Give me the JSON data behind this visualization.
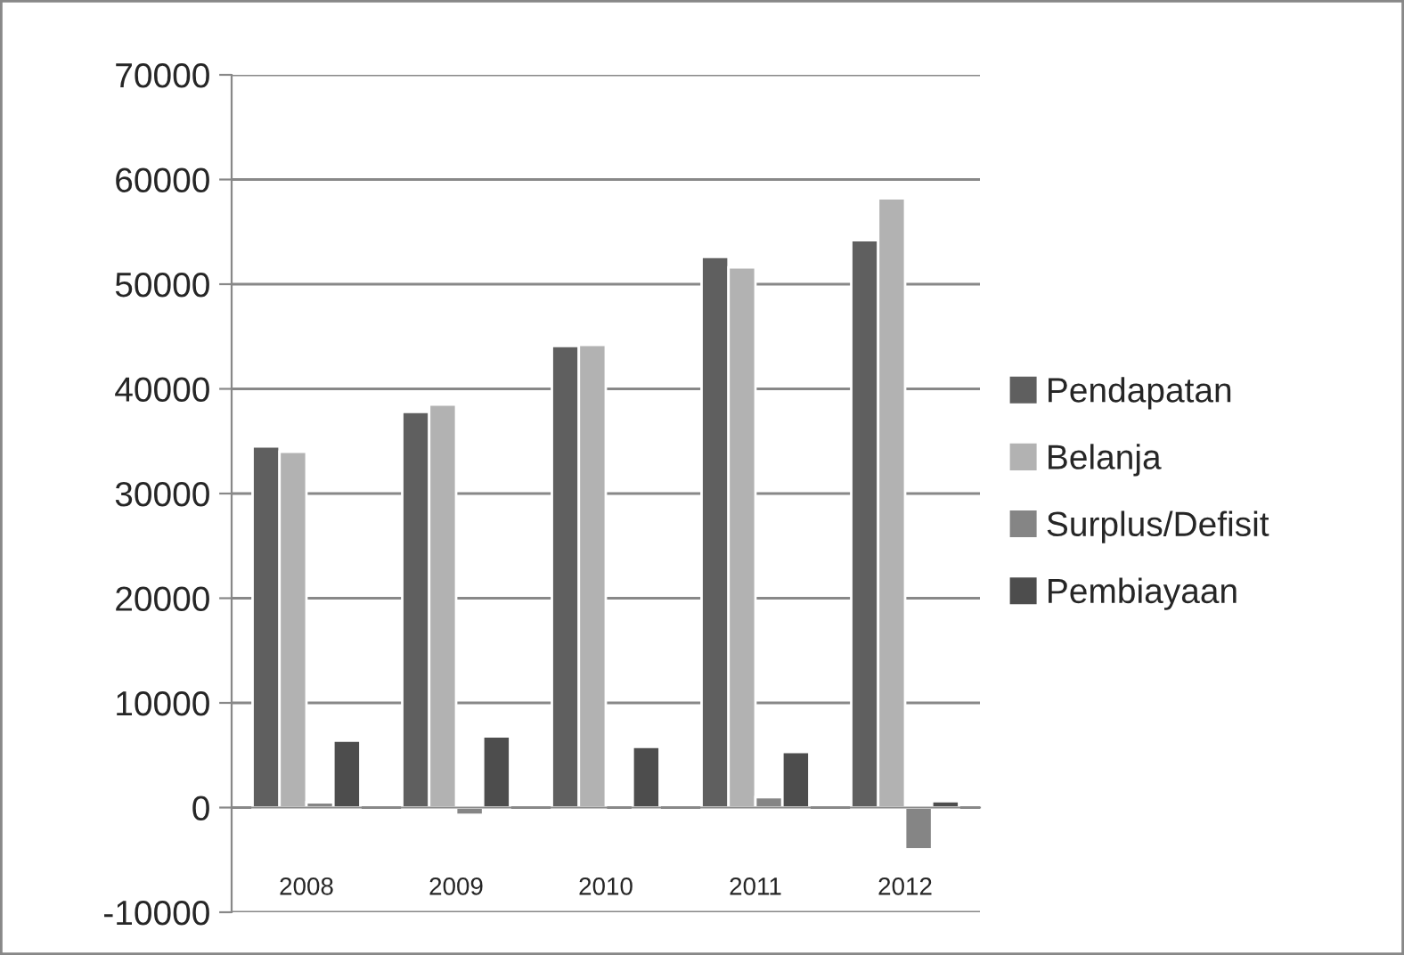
{
  "chart_data": {
    "type": "bar",
    "categories": [
      "2008",
      "2009",
      "2010",
      "2011",
      "2012"
    ],
    "series": [
      {
        "name": "Pendapatan",
        "color": "#5f5f5f",
        "values": [
          34500,
          37800,
          44100,
          52600,
          54200
        ]
      },
      {
        "name": "Belanja",
        "color": "#b2b2b2",
        "values": [
          34000,
          38500,
          44200,
          51600,
          58200
        ]
      },
      {
        "name": "Surplus/Defisit",
        "color": "#858585",
        "values": [
          500,
          -700,
          null,
          1000,
          -4000
        ]
      },
      {
        "name": "Pembiayaan",
        "color": "#4d4d4d",
        "values": [
          6400,
          6800,
          5800,
          5300,
          600
        ]
      }
    ],
    "ylim": [
      -10000,
      70000
    ],
    "yticks": [
      -10000,
      0,
      10000,
      20000,
      30000,
      40000,
      50000,
      60000,
      70000
    ],
    "grid": "y",
    "legend": "right"
  }
}
